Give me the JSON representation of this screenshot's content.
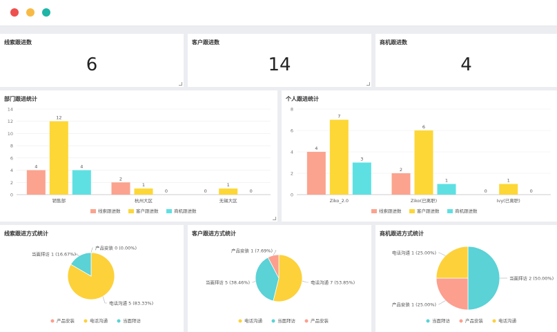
{
  "window": {
    "controls": [
      {
        "name": "close",
        "color": "#ee4f4f"
      },
      {
        "name": "minimize",
        "color": "#f7bb45"
      },
      {
        "name": "maximize",
        "color": "#1fb5a6"
      }
    ]
  },
  "stats": [
    {
      "title": "线索跟进数",
      "value": "6"
    },
    {
      "title": "客户跟进数",
      "value": "14"
    },
    {
      "title": "商机跟进数",
      "value": "4"
    }
  ],
  "colors": {
    "salmon": "#fba38e",
    "yellow": "#fdd736",
    "teal": "#5ee0e3",
    "pie_teal": "#5ad2d6",
    "pie_yellow": "#fdd13a",
    "pie_salmon": "#fc9f8e"
  },
  "dept_title": "部门跟进统计",
  "personal_title": "个人跟进统计",
  "clue_pie_title": "线索跟进方式统计",
  "customer_pie_title": "客户跟进方式统计",
  "opp_pie_title": "商机跟进方式统计",
  "chart_data": [
    {
      "type": "bar",
      "categories": [
        "销售部",
        "杭州大区",
        "无锡大区"
      ],
      "series": [
        {
          "name": "线索跟进数",
          "values": [
            4,
            2,
            0
          ]
        },
        {
          "name": "客户跟进数",
          "values": [
            12,
            1,
            1
          ]
        },
        {
          "name": "商机跟进数",
          "values": [
            4,
            0,
            0
          ]
        }
      ],
      "ylim": [
        0,
        14
      ],
      "yticks": [
        0,
        2,
        4,
        6,
        8,
        10,
        12,
        14
      ],
      "legend": "bottom",
      "grid": true
    },
    {
      "type": "bar",
      "categories": [
        "Ziko_2.0",
        "Ziko(已离职)",
        "Ivy(已离职)"
      ],
      "series": [
        {
          "name": "线索跟进数",
          "values": [
            4,
            2,
            0
          ]
        },
        {
          "name": "客户跟进数",
          "values": [
            7,
            6,
            1
          ]
        },
        {
          "name": "商机跟进数",
          "values": [
            3,
            1,
            0
          ]
        }
      ],
      "ylim": [
        0,
        8
      ],
      "yticks": [
        0,
        2,
        4,
        6,
        8
      ],
      "legend": "bottom",
      "grid": true
    },
    {
      "type": "pie",
      "slices": [
        {
          "name": "产品安装",
          "value": 0,
          "label": "产品安装 0 (0.00%)"
        },
        {
          "name": "电话沟通",
          "value": 5,
          "label": "电话沟通 5 (83.33%)"
        },
        {
          "name": "当面拜访",
          "value": 1,
          "label": "当面拜访 1 (16.67%)"
        }
      ],
      "legend": "bottom"
    },
    {
      "type": "pie",
      "slices": [
        {
          "name": "电话沟通",
          "value": 7,
          "label": "电话沟通 7 (53.85%)"
        },
        {
          "name": "当面拜访",
          "value": 5,
          "label": "当面拜访 5 (38.46%)"
        },
        {
          "name": "产品安装",
          "value": 1,
          "label": "产品安装 1 (7.69%)"
        }
      ],
      "legend": "bottom"
    },
    {
      "type": "pie",
      "slices": [
        {
          "name": "当面拜访",
          "value": 2,
          "label": "当面拜访 2 (50.00%)"
        },
        {
          "name": "产品安装",
          "value": 1,
          "label": "产品安装 1 (25.00%)"
        },
        {
          "name": "电话沟通",
          "value": 1,
          "label": "电话沟通 1 (25.00%)"
        }
      ],
      "legend": "bottom"
    }
  ]
}
